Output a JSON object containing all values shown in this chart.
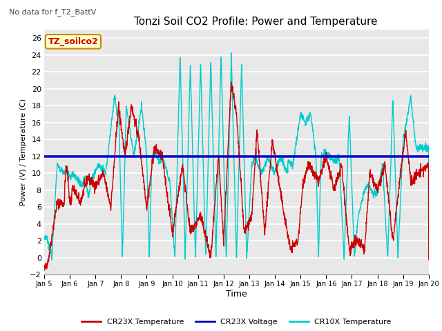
{
  "title": "Tonzi Soil CO2 Profile: Power and Temperature",
  "subtitle": "No data for f_T2_BattV",
  "ylabel": "Power (V) / Temperature (C)",
  "xlabel": "Time",
  "ylim": [
    -2,
    27
  ],
  "yticks": [
    -2,
    0,
    2,
    4,
    6,
    8,
    10,
    12,
    14,
    16,
    18,
    20,
    22,
    24,
    26
  ],
  "xlim": [
    0,
    15
  ],
  "xtick_labels": [
    "Jan 5",
    "Jan 6",
    "Jan 7",
    "Jan 8",
    "Jan 9",
    "Jan 10",
    "Jan 11",
    "Jan 12",
    "Jan 13",
    "Jan 14",
    "Jan 15",
    "Jan 16",
    "Jan 17",
    "Jan 18",
    "Jan 19",
    "Jan 20"
  ],
  "legend_entries": [
    "CR23X Temperature",
    "CR23X Voltage",
    "CR10X Temperature"
  ],
  "legend_colors": [
    "#cc0000",
    "#0000cc",
    "#00cccc"
  ],
  "fig_bg": "#ffffff",
  "plot_bg": "#e8e8e8",
  "grid_color": "#ffffff",
  "annotation_text": "TZ_soilco2",
  "annotation_bg": "#ffffcc",
  "annotation_border": "#cc8800",
  "annotation_color": "#cc0000"
}
